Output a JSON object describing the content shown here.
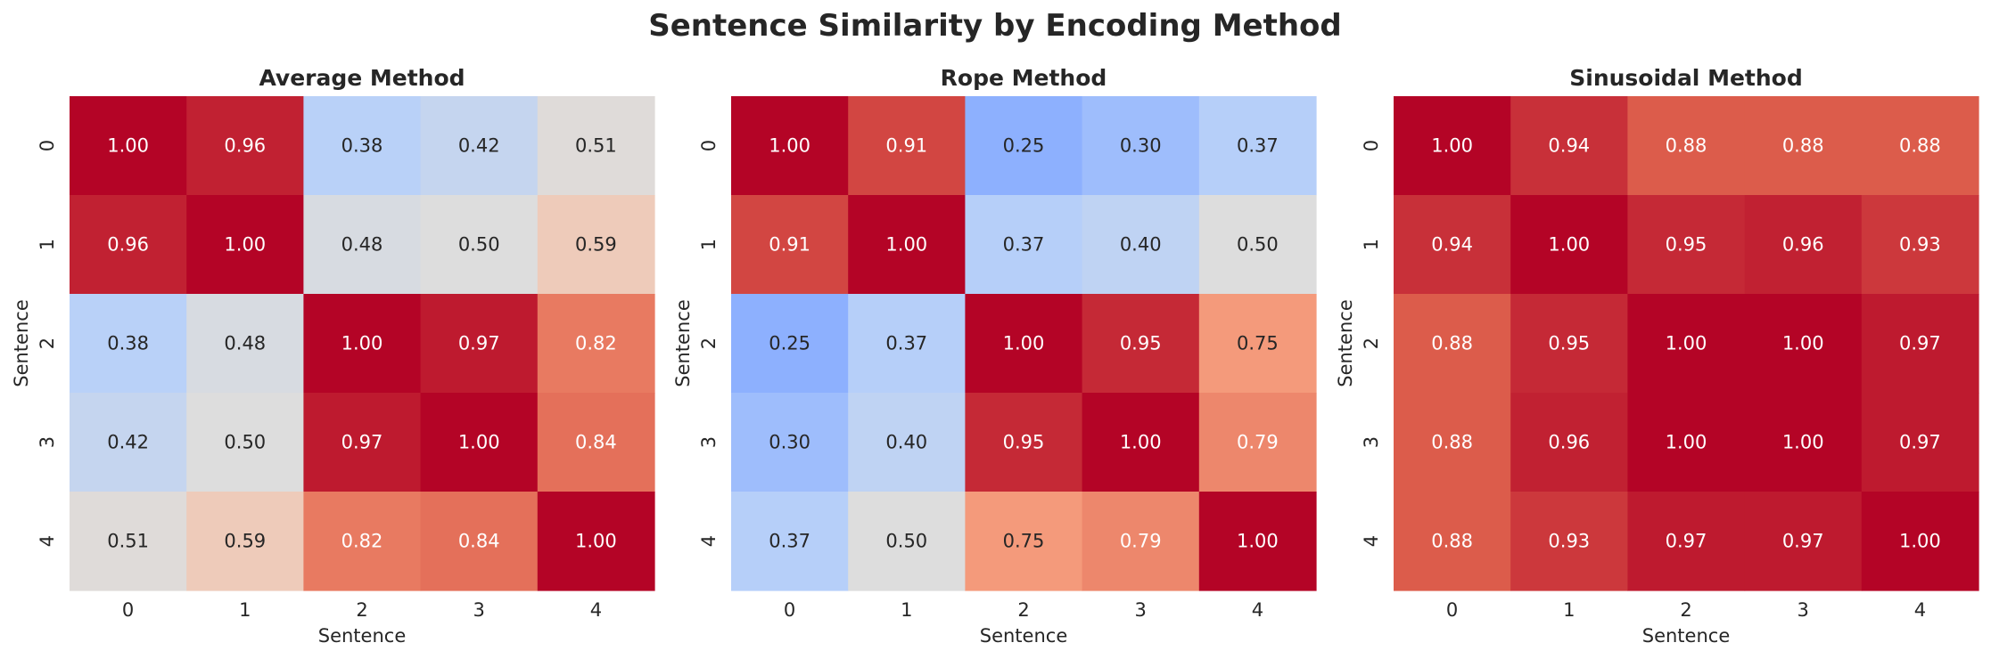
{
  "figure": {
    "title": "Sentence Similarity by Encoding Method"
  },
  "chart_data": [
    {
      "type": "heatmap",
      "title": "Average Method",
      "xlabel": "Sentence",
      "ylabel": "Sentence",
      "x_ticks": [
        "0",
        "1",
        "2",
        "3",
        "4"
      ],
      "y_ticks": [
        "0",
        "1",
        "2",
        "3",
        "4"
      ],
      "colormap": "coolwarm",
      "colorbar": false,
      "annotation_format": "0.00",
      "values": [
        [
          1.0,
          0.96,
          0.38,
          0.42,
          0.51
        ],
        [
          0.96,
          1.0,
          0.48,
          0.5,
          0.59
        ],
        [
          0.38,
          0.48,
          1.0,
          0.97,
          0.82
        ],
        [
          0.42,
          0.5,
          0.97,
          1.0,
          0.84
        ],
        [
          0.51,
          0.59,
          0.82,
          0.84,
          1.0
        ]
      ]
    },
    {
      "type": "heatmap",
      "title": "Rope Method",
      "xlabel": "Sentence",
      "ylabel": "Sentence",
      "x_ticks": [
        "0",
        "1",
        "2",
        "3",
        "4"
      ],
      "y_ticks": [
        "0",
        "1",
        "2",
        "3",
        "4"
      ],
      "colormap": "coolwarm",
      "colorbar": false,
      "annotation_format": "0.00",
      "values": [
        [
          1.0,
          0.91,
          0.25,
          0.3,
          0.37
        ],
        [
          0.91,
          1.0,
          0.37,
          0.4,
          0.5
        ],
        [
          0.25,
          0.37,
          1.0,
          0.95,
          0.75
        ],
        [
          0.3,
          0.4,
          0.95,
          1.0,
          0.79
        ],
        [
          0.37,
          0.5,
          0.75,
          0.79,
          1.0
        ]
      ]
    },
    {
      "type": "heatmap",
      "title": "Sinusoidal Method",
      "xlabel": "Sentence",
      "ylabel": "Sentence",
      "x_ticks": [
        "0",
        "1",
        "2",
        "3",
        "4"
      ],
      "y_ticks": [
        "0",
        "1",
        "2",
        "3",
        "4"
      ],
      "colormap": "coolwarm",
      "colorbar": false,
      "annotation_format": "0.00",
      "values": [
        [
          1.0,
          0.94,
          0.88,
          0.88,
          0.88
        ],
        [
          0.94,
          1.0,
          0.95,
          0.96,
          0.93
        ],
        [
          0.88,
          0.95,
          1.0,
          1.0,
          0.97
        ],
        [
          0.88,
          0.96,
          1.0,
          1.0,
          0.97
        ],
        [
          0.88,
          0.93,
          0.97,
          0.97,
          1.0
        ]
      ]
    }
  ]
}
